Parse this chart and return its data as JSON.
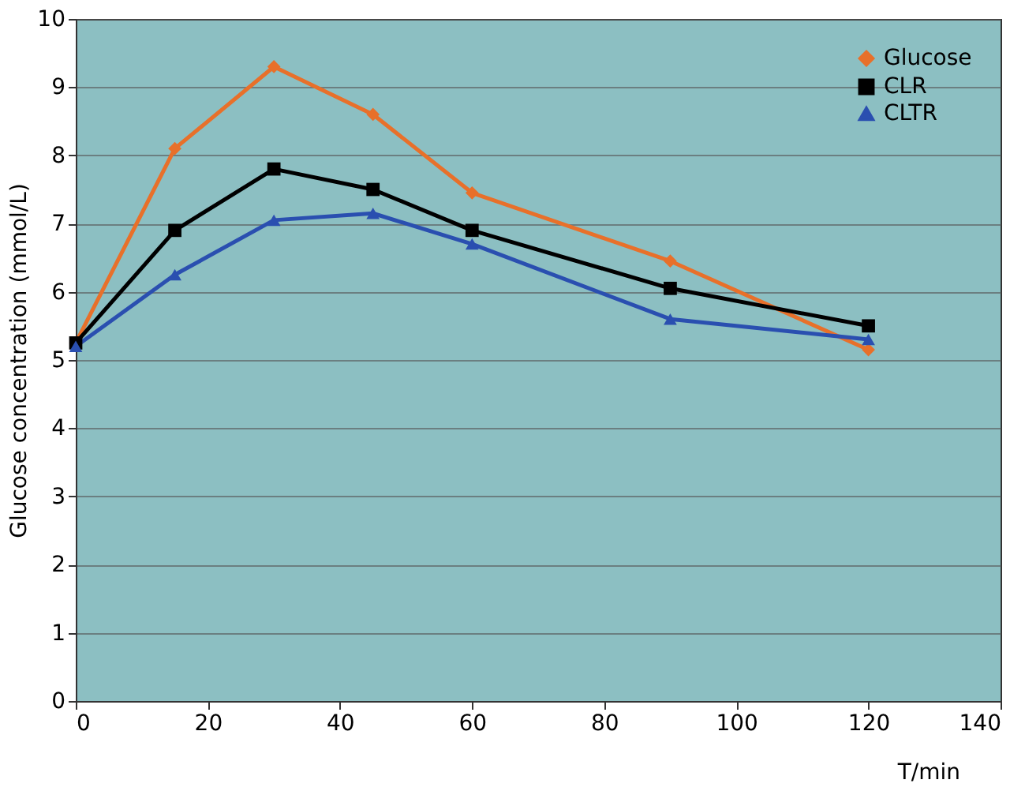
{
  "chart_data": {
    "type": "line",
    "xlabel": "T/min",
    "ylabel": "Glucose concentration (mmol/L)",
    "x": [
      0,
      15,
      30,
      45,
      60,
      90,
      120
    ],
    "series": [
      {
        "name": "Glucose",
        "color": "#e8702a",
        "marker": "diamond",
        "values": [
          5.25,
          8.1,
          9.3,
          8.6,
          7.45,
          6.45,
          5.15
        ]
      },
      {
        "name": "CLR",
        "color": "#000000",
        "marker": "square",
        "values": [
          5.25,
          6.9,
          7.8,
          7.5,
          6.9,
          6.05,
          5.5
        ]
      },
      {
        "name": "CLTR",
        "color": "#2a4fb0",
        "marker": "triangle",
        "values": [
          5.2,
          6.25,
          7.05,
          7.15,
          6.7,
          5.6,
          5.3
        ]
      }
    ],
    "xlim": [
      0,
      140
    ],
    "xticks": [
      0,
      20,
      40,
      60,
      80,
      100,
      120,
      140
    ],
    "ylim": [
      0,
      10
    ],
    "yticks": [
      0,
      1,
      2,
      3,
      4,
      5,
      6,
      7,
      8,
      9,
      10
    ],
    "grid": "y",
    "legend": "top right",
    "line_style": "solid"
  }
}
